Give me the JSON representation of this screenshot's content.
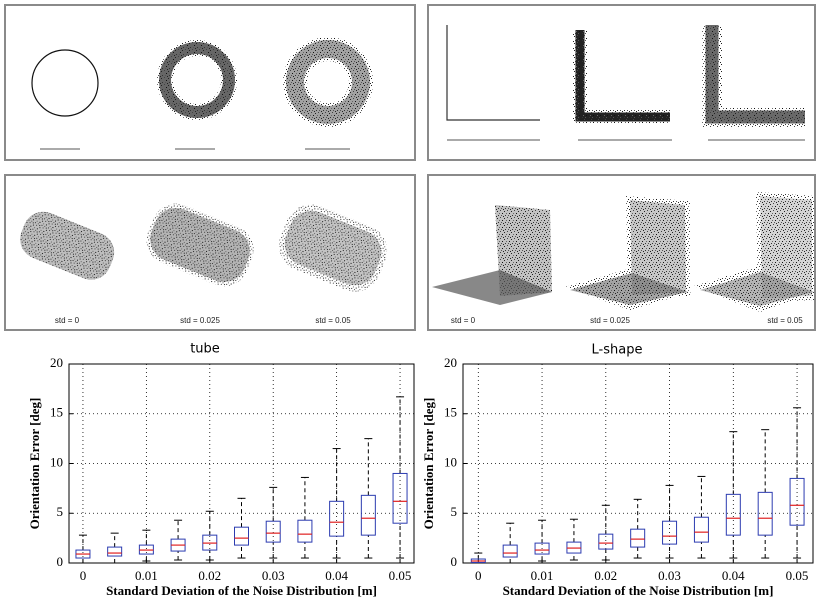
{
  "panels": {
    "tube_labels": [
      "std = 0",
      "std = 0.025",
      "std = 0.05"
    ],
    "lshape_labels": [
      "std = 0",
      "std = 0.025",
      "std = 0.05"
    ],
    "tube_caption": "tube",
    "lshape_caption": "L-shape"
  },
  "chart_data": [
    {
      "type": "box",
      "xlabel": "Standard Deviation of the Noise Distribution [m]",
      "ylabel": "Orientation Error [deg]",
      "x": [
        0,
        0.005,
        0.01,
        0.015,
        0.02,
        0.025,
        0.03,
        0.035,
        0.04,
        0.045,
        0.05
      ],
      "low": [
        0,
        0,
        0.2,
        0.3,
        0.3,
        0.5,
        0.5,
        0.5,
        0.5,
        0.5,
        0.5
      ],
      "q1": [
        0.5,
        0.7,
        0.9,
        1.2,
        1.3,
        1.8,
        2.1,
        2.1,
        2.7,
        2.8,
        4.0
      ],
      "median": [
        0.9,
        1.0,
        1.3,
        1.8,
        2.0,
        2.5,
        3.0,
        2.9,
        4.1,
        4.5,
        6.2
      ],
      "q3": [
        1.3,
        1.6,
        1.8,
        2.4,
        2.8,
        3.6,
        4.2,
        4.3,
        6.2,
        6.8,
        9.0
      ],
      "high": [
        2.8,
        3.0,
        3.3,
        4.3,
        5.2,
        6.5,
        7.6,
        8.6,
        11.5,
        12.5,
        16.7
      ],
      "box_color": "#2b3bb0",
      "median_color": "#e02020",
      "xlim": [
        -0.0022,
        0.0522
      ],
      "ylim": [
        0,
        20
      ],
      "xticks": [
        0,
        0.01,
        0.02,
        0.03,
        0.04,
        0.05
      ],
      "yticks": [
        0,
        5,
        10,
        15,
        20
      ],
      "grid": true
    },
    {
      "type": "box",
      "xlabel": "Standard Deviation of the Noise Distribution [m]",
      "ylabel": "Orientation Error [deg]",
      "x": [
        0,
        0.005,
        0.01,
        0.015,
        0.02,
        0.025,
        0.03,
        0.035,
        0.04,
        0.045,
        0.05
      ],
      "low": [
        0,
        0,
        0.2,
        0.3,
        0.3,
        0.5,
        0.5,
        0.5,
        0.5,
        0.5,
        0.5
      ],
      "q1": [
        0.05,
        0.6,
        0.9,
        1.0,
        1.4,
        1.6,
        1.9,
        2.1,
        2.8,
        2.8,
        3.8
      ],
      "median": [
        0.2,
        1.0,
        1.3,
        1.5,
        2.0,
        2.4,
        2.7,
        3.1,
        4.5,
        4.5,
        5.8
      ],
      "q3": [
        0.4,
        1.8,
        2.0,
        2.1,
        2.9,
        3.4,
        4.2,
        4.6,
        6.9,
        7.1,
        8.5
      ],
      "high": [
        1.0,
        4.0,
        4.3,
        4.4,
        5.8,
        6.4,
        7.8,
        8.7,
        13.2,
        13.4,
        15.6
      ],
      "box_color": "#2b3bb0",
      "median_color": "#e02020",
      "xlim": [
        -0.0024,
        0.0525
      ],
      "ylim": [
        0,
        20
      ],
      "xticks": [
        0,
        0.01,
        0.02,
        0.03,
        0.04,
        0.05
      ],
      "yticks": [
        0,
        5,
        10,
        15,
        20
      ],
      "grid": true
    }
  ]
}
